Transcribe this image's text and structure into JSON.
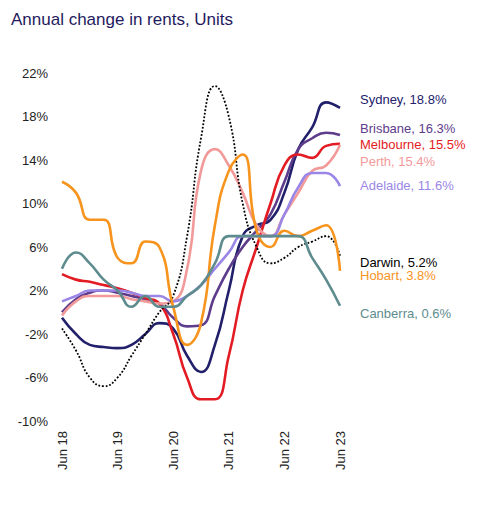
{
  "chart_data": {
    "type": "line",
    "title": "Annual change in rents, Units",
    "categories": [
      "Jun 18",
      null,
      null,
      null,
      "Jun 19",
      null,
      null,
      null,
      "Jun 20",
      null,
      null,
      null,
      "Jun 21",
      null,
      null,
      null,
      "Jun 22",
      null,
      null,
      null,
      "Jun 23"
    ],
    "ylim": [
      -10,
      22
    ],
    "yticks": [
      {
        "value": -10,
        "label": "-10%"
      },
      {
        "value": -6,
        "label": "-6%"
      },
      {
        "value": -2,
        "label": "-2%"
      },
      {
        "value": 2,
        "label": "2%"
      },
      {
        "value": 6,
        "label": "6%"
      },
      {
        "value": 10,
        "label": "10%"
      },
      {
        "value": 14,
        "label": "14%"
      },
      {
        "value": 18,
        "label": "18%"
      },
      {
        "value": 22,
        "label": "22%"
      }
    ],
    "grid": false,
    "series": [
      {
        "name": "Sydney",
        "end_label": "Sydney, 18.8%",
        "color": "#22206b",
        "line_style": "solid",
        "values": [
          -0.5,
          -2,
          -3,
          -3.2,
          -3.3,
          -3,
          -2,
          -1,
          -1.5,
          -4,
          -5.5,
          -3,
          2,
          7,
          8,
          8.5,
          11,
          15,
          17,
          19.3,
          18.8
        ]
      },
      {
        "name": "Brisbane",
        "end_label": "Brisbane, 16.3%",
        "color": "#5e3c8c",
        "line_style": "solid",
        "values": [
          0,
          1.2,
          1.8,
          2,
          1.8,
          1.5,
          1.2,
          0.8,
          -0.5,
          -1.3,
          -1.2,
          1.5,
          4,
          6,
          7.5,
          9,
          12,
          15,
          16,
          16.5,
          16.3
        ]
      },
      {
        "name": "Melbourne",
        "end_label": "Melbourne, 15.5%",
        "color": "#e31b23",
        "line_style": "solid",
        "values": [
          3.5,
          3,
          2.8,
          2.5,
          2.2,
          1.8,
          1.3,
          0.8,
          -2,
          -6,
          -8,
          -8,
          -4,
          2,
          6,
          10,
          13.5,
          14.5,
          14.2,
          15.3,
          15.5
        ]
      },
      {
        "name": "Perth",
        "end_label": "Perth, 15.4%",
        "color": "#f29a9a",
        "line_style": "solid",
        "values": [
          -0.3,
          1,
          1.5,
          1.5,
          1.5,
          1.2,
          1,
          0.8,
          1,
          4,
          13,
          15,
          13.5,
          11,
          8,
          7,
          9,
          11,
          13,
          13.5,
          15.4
        ]
      },
      {
        "name": "Adelaide",
        "end_label": "Adelaide, 11.6%",
        "color": "#9a86e6",
        "line_style": "solid",
        "values": [
          1,
          1.5,
          2,
          2,
          2,
          1.8,
          1.5,
          1.5,
          1,
          1.5,
          2.5,
          4,
          5.5,
          7,
          7,
          7,
          9,
          11.5,
          12.8,
          12.8,
          11.6
        ]
      },
      {
        "name": "Darwin",
        "end_label": "Darwin, 5.2%",
        "color": "#000000",
        "line_style": "dotted",
        "values": [
          -1.5,
          -3.5,
          -6,
          -6.8,
          -6,
          -4,
          -2,
          0,
          1.5,
          7,
          16,
          20.8,
          18,
          10,
          6,
          4.5,
          5,
          6,
          6.5,
          7,
          5.2
        ]
      },
      {
        "name": "Hobart",
        "end_label": "Hobart, 3.8%",
        "color": "#f7941d",
        "line_style": "solid",
        "values": [
          12,
          11,
          8.5,
          8.5,
          5,
          4.5,
          6.5,
          6,
          0.5,
          -3,
          -1,
          8,
          13,
          14.5,
          7.5,
          6,
          7.5,
          7,
          7.5,
          8,
          3.8
        ]
      },
      {
        "name": "Canberra",
        "end_label": "Canberra, 0.6%",
        "color": "#5e8c8e",
        "line_style": "solid",
        "values": [
          4,
          5.5,
          4.5,
          3,
          2,
          0.5,
          1.5,
          0.5,
          0.5,
          1.5,
          2.5,
          4.5,
          7,
          7,
          7,
          7,
          7,
          7,
          5,
          3,
          0.6
        ]
      }
    ]
  }
}
